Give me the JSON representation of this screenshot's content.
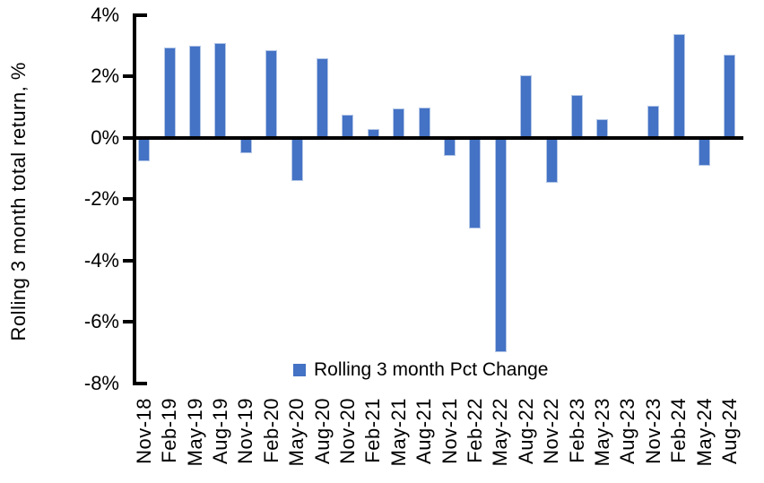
{
  "chart_data": {
    "type": "bar",
    "title": "",
    "xlabel": "",
    "ylabel": "Rolling 3 month total return, %",
    "legend_label": "Rolling 3 month Pct Change",
    "legend_position": "bottom-center",
    "grid": false,
    "categories": [
      "Nov-18",
      "Feb-19",
      "May-19",
      "Aug-19",
      "Nov-19",
      "Feb-20",
      "May-20",
      "Aug-20",
      "Nov-20",
      "Feb-21",
      "May-21",
      "Aug-21",
      "Nov-21",
      "Feb-22",
      "May-22",
      "Aug-22",
      "Nov-22",
      "Feb-23",
      "May-23",
      "Aug-23",
      "Nov-23",
      "Feb-24",
      "May-24",
      "Aug-24"
    ],
    "values": [
      -0.75,
      2.95,
      3.0,
      3.1,
      -0.5,
      2.85,
      -1.4,
      2.6,
      0.75,
      0.3,
      0.95,
      1.0,
      -0.6,
      -2.95,
      -7.0,
      2.05,
      -1.45,
      1.4,
      0.6,
      0.0,
      1.05,
      3.4,
      -0.9,
      2.7
    ],
    "ylim": [
      -8,
      4
    ],
    "yticks": [
      4,
      2,
      0,
      -2,
      -4,
      -6,
      -8
    ],
    "ytick_labels": [
      "4%",
      "2%",
      "0%",
      "-2%",
      "-4%",
      "-6%",
      "-8%"
    ],
    "colors": {
      "bar_fill": "#4472C4",
      "bar_edge": "#B4C7E7",
      "axis": "#000000",
      "text": "#000000",
      "background": "#FFFFFF"
    }
  }
}
